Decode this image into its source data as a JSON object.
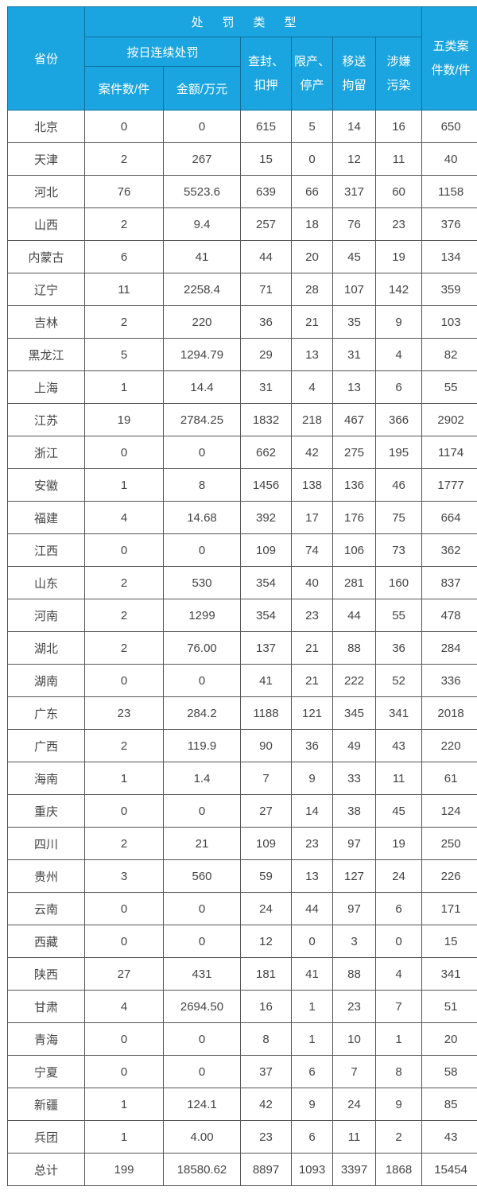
{
  "header": {
    "province": "省份",
    "penalty_type": "处罚类型",
    "daily_penalty": "按日连续处罚",
    "cases": "案件数/件",
    "amount": "金额/万元",
    "seize": [
      "查封、",
      "扣押"
    ],
    "limit": [
      "限产、",
      "停产"
    ],
    "detain": [
      "移送",
      "拘留"
    ],
    "pollution": [
      "涉嫌",
      "污染"
    ],
    "total_cases": [
      "五类案",
      "件数/件"
    ]
  },
  "colors": {
    "header_bg": "#1aa5e0",
    "header_text": "#ffffff"
  },
  "rows": [
    [
      "北京",
      "0",
      "0",
      "615",
      "5",
      "14",
      "16",
      "650"
    ],
    [
      "天津",
      "2",
      "267",
      "15",
      "0",
      "12",
      "11",
      "40"
    ],
    [
      "河北",
      "76",
      "5523.6",
      "639",
      "66",
      "317",
      "60",
      "1158"
    ],
    [
      "山西",
      "2",
      "9.4",
      "257",
      "18",
      "76",
      "23",
      "376"
    ],
    [
      "内蒙古",
      "6",
      "41",
      "44",
      "20",
      "45",
      "19",
      "134"
    ],
    [
      "辽宁",
      "11",
      "2258.4",
      "71",
      "28",
      "107",
      "142",
      "359"
    ],
    [
      "吉林",
      "2",
      "220",
      "36",
      "21",
      "35",
      "9",
      "103"
    ],
    [
      "黑龙江",
      "5",
      "1294.79",
      "29",
      "13",
      "31",
      "4",
      "82"
    ],
    [
      "上海",
      "1",
      "14.4",
      "31",
      "4",
      "13",
      "6",
      "55"
    ],
    [
      "江苏",
      "19",
      "2784.25",
      "1832",
      "218",
      "467",
      "366",
      "2902"
    ],
    [
      "浙江",
      "0",
      "0",
      "662",
      "42",
      "275",
      "195",
      "1174"
    ],
    [
      "安徽",
      "1",
      "8",
      "1456",
      "138",
      "136",
      "46",
      "1777"
    ],
    [
      "福建",
      "4",
      "14.68",
      "392",
      "17",
      "176",
      "75",
      "664"
    ],
    [
      "江西",
      "0",
      "0",
      "109",
      "74",
      "106",
      "73",
      "362"
    ],
    [
      "山东",
      "2",
      "530",
      "354",
      "40",
      "281",
      "160",
      "837"
    ],
    [
      "河南",
      "2",
      "1299",
      "354",
      "23",
      "44",
      "55",
      "478"
    ],
    [
      "湖北",
      "2",
      "76.00",
      "137",
      "21",
      "88",
      "36",
      "284"
    ],
    [
      "湖南",
      "0",
      "0",
      "41",
      "21",
      "222",
      "52",
      "336"
    ],
    [
      "广东",
      "23",
      "284.2",
      "1188",
      "121",
      "345",
      "341",
      "2018"
    ],
    [
      "广西",
      "2",
      "119.9",
      "90",
      "36",
      "49",
      "43",
      "220"
    ],
    [
      "海南",
      "1",
      "1.4",
      "7",
      "9",
      "33",
      "11",
      "61"
    ],
    [
      "重庆",
      "0",
      "0",
      "27",
      "14",
      "38",
      "45",
      "124"
    ],
    [
      "四川",
      "2",
      "21",
      "109",
      "23",
      "97",
      "19",
      "250"
    ],
    [
      "贵州",
      "3",
      "560",
      "59",
      "13",
      "127",
      "24",
      "226"
    ],
    [
      "云南",
      "0",
      "0",
      "24",
      "44",
      "97",
      "6",
      "171"
    ],
    [
      "西藏",
      "0",
      "0",
      "12",
      "0",
      "3",
      "0",
      "15"
    ],
    [
      "陕西",
      "27",
      "431",
      "181",
      "41",
      "88",
      "4",
      "341"
    ],
    [
      "甘肃",
      "4",
      "2694.50",
      "16",
      "1",
      "23",
      "7",
      "51"
    ],
    [
      "青海",
      "0",
      "0",
      "8",
      "1",
      "10",
      "1",
      "20"
    ],
    [
      "宁夏",
      "0",
      "0",
      "37",
      "6",
      "7",
      "8",
      "58"
    ],
    [
      "新疆",
      "1",
      "124.1",
      "42",
      "9",
      "24",
      "9",
      "85"
    ],
    [
      "兵团",
      "1",
      "4.00",
      "23",
      "6",
      "11",
      "2",
      "43"
    ],
    [
      "总计",
      "199",
      "18580.62",
      "8897",
      "1093",
      "3397",
      "1868",
      "15454"
    ]
  ]
}
